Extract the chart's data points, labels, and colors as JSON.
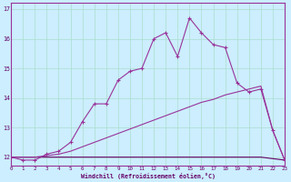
{
  "xlabel": "Windchill (Refroidissement éolien,°C)",
  "background_color": "#cceeff",
  "grid_color": "#aaddcc",
  "line_color_main": "#993399",
  "line_color_diag": "#993399",
  "line_color_flat": "#660066",
  "hours": [
    0,
    1,
    2,
    3,
    4,
    5,
    6,
    7,
    8,
    9,
    10,
    11,
    12,
    13,
    14,
    15,
    16,
    17,
    18,
    19,
    20,
    21,
    22,
    23
  ],
  "windchill": [
    12.0,
    11.9,
    11.9,
    12.1,
    12.2,
    12.5,
    13.2,
    13.8,
    13.8,
    14.6,
    14.9,
    15.0,
    16.0,
    16.2,
    15.4,
    16.7,
    16.2,
    15.8,
    15.7,
    14.5,
    14.2,
    14.3,
    12.9,
    11.9
  ],
  "wc_diag": [
    12.0,
    12.0,
    12.0,
    12.05,
    12.1,
    12.2,
    12.35,
    12.5,
    12.65,
    12.8,
    12.95,
    13.1,
    13.25,
    13.4,
    13.55,
    13.7,
    13.85,
    13.95,
    14.1,
    14.2,
    14.3,
    14.4,
    12.9,
    11.9
  ],
  "wc_flat": [
    12.0,
    12.0,
    12.0,
    12.0,
    12.0,
    12.0,
    12.0,
    12.0,
    12.0,
    12.0,
    12.0,
    12.0,
    12.0,
    12.0,
    12.0,
    12.0,
    12.0,
    12.0,
    12.0,
    12.0,
    12.0,
    12.0,
    11.95,
    11.9
  ],
  "ylim": [
    11.7,
    17.2
  ],
  "yticks": [
    12,
    13,
    14,
    15,
    16,
    17
  ],
  "xlim": [
    0,
    23
  ],
  "xticks": [
    0,
    1,
    2,
    3,
    4,
    5,
    6,
    7,
    8,
    9,
    10,
    11,
    12,
    13,
    14,
    15,
    16,
    17,
    18,
    19,
    20,
    21,
    22,
    23
  ]
}
